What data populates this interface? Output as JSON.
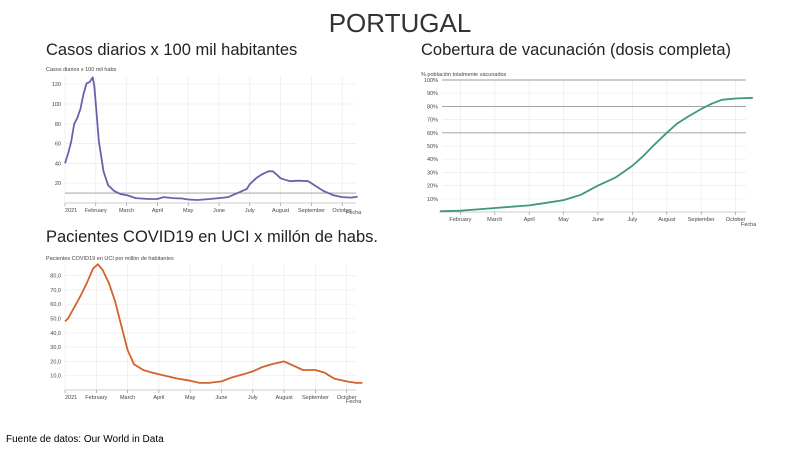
{
  "title": "PORTUGAL",
  "source": "Fuente de datos: Our World in Data",
  "chart_data": [
    {
      "type": "line",
      "title": "Casos diarios x 100 mil habitantes",
      "ylabel": "Casos diarios x 100 mil habs",
      "xlabel": "Fecha",
      "color": "#6a62a8",
      "xticks": [
        "2021",
        "February",
        "March",
        "April",
        "May",
        "June",
        "July",
        "August",
        "September",
        "October"
      ],
      "yticks": [
        "20",
        "40",
        "60",
        "80",
        "100",
        "120"
      ],
      "ylim": [
        0,
        125
      ],
      "reference_lines": [
        10
      ],
      "x_unit": "months since 2021-01-01",
      "points": [
        [
          0,
          40
        ],
        [
          0.1,
          50
        ],
        [
          0.2,
          62
        ],
        [
          0.3,
          80
        ],
        [
          0.4,
          86
        ],
        [
          0.5,
          95
        ],
        [
          0.6,
          110
        ],
        [
          0.7,
          121
        ],
        [
          0.8,
          122
        ],
        [
          0.9,
          127
        ],
        [
          0.95,
          118
        ],
        [
          1.0,
          100
        ],
        [
          1.1,
          62
        ],
        [
          1.25,
          32
        ],
        [
          1.4,
          18
        ],
        [
          1.6,
          12
        ],
        [
          1.8,
          9
        ],
        [
          2.0,
          8
        ],
        [
          2.3,
          5
        ],
        [
          2.7,
          4
        ],
        [
          3.0,
          4
        ],
        [
          3.2,
          6
        ],
        [
          3.5,
          5
        ],
        [
          3.8,
          4.5
        ],
        [
          4.0,
          3.5
        ],
        [
          4.3,
          3
        ],
        [
          4.7,
          4
        ],
        [
          5.0,
          5
        ],
        [
          5.3,
          6
        ],
        [
          5.6,
          10
        ],
        [
          5.9,
          14
        ],
        [
          6.0,
          19
        ],
        [
          6.2,
          25
        ],
        [
          6.4,
          29
        ],
        [
          6.6,
          32
        ],
        [
          6.75,
          32
        ],
        [
          6.9,
          28
        ],
        [
          7.0,
          25
        ],
        [
          7.3,
          22
        ],
        [
          7.6,
          22.5
        ],
        [
          7.9,
          22
        ],
        [
          8.1,
          18
        ],
        [
          8.4,
          12
        ],
        [
          8.7,
          8
        ],
        [
          9.0,
          6
        ],
        [
          9.3,
          5.5
        ],
        [
          9.5,
          6.5
        ]
      ]
    },
    {
      "type": "line",
      "title": "Cobertura de vacunación (dosis completa)",
      "ylabel": "% población totalmente vacunados",
      "xlabel": "Fecha",
      "color": "#3e9a72",
      "xticks": [
        "",
        "February",
        "March",
        "April",
        "May",
        "June",
        "July",
        "August",
        "September",
        "October"
      ],
      "yticks": [
        "10%",
        "20%",
        "30%",
        "40%",
        "50%",
        "60%",
        "70%",
        "80%",
        "90%",
        "100%"
      ],
      "ylim": [
        0,
        100
      ],
      "reference_lines": [
        60,
        80,
        100
      ],
      "x_unit": "months since 2021-01-01",
      "points": [
        [
          0.4,
          0.5
        ],
        [
          1,
          1
        ],
        [
          1.5,
          2
        ],
        [
          2,
          3
        ],
        [
          2.5,
          4
        ],
        [
          3,
          5
        ],
        [
          3.5,
          7
        ],
        [
          4,
          9
        ],
        [
          4.5,
          13
        ],
        [
          5,
          20
        ],
        [
          5.5,
          26
        ],
        [
          6,
          35
        ],
        [
          6.3,
          42
        ],
        [
          6.6,
          50
        ],
        [
          7,
          60
        ],
        [
          7.3,
          67
        ],
        [
          7.6,
          72
        ],
        [
          8,
          78
        ],
        [
          8.3,
          82
        ],
        [
          8.6,
          85
        ],
        [
          9,
          86
        ],
        [
          9.5,
          86.5
        ]
      ]
    },
    {
      "type": "line",
      "title": "Pacientes COVID19 en UCI x millón de habs.",
      "ylabel": "Pacientes COVID19 en UCI por millón de habitantes",
      "xlabel": "Fecha",
      "color": "#d2632a",
      "xticks": [
        "2021",
        "February",
        "March",
        "April",
        "May",
        "June",
        "July",
        "August",
        "September",
        "October"
      ],
      "yticks": [
        "10,0",
        "20,0",
        "30,0",
        "40,0",
        "50,0",
        "60,0",
        "70,0",
        "80,0"
      ],
      "ylim": [
        0,
        90
      ],
      "reference_lines": [],
      "x_unit": "months since 2021-01-01",
      "points": [
        [
          0,
          48
        ],
        [
          0.1,
          50
        ],
        [
          0.3,
          58
        ],
        [
          0.5,
          66
        ],
        [
          0.7,
          75
        ],
        [
          0.9,
          85
        ],
        [
          1.05,
          88
        ],
        [
          1.2,
          84
        ],
        [
          1.4,
          75
        ],
        [
          1.6,
          62
        ],
        [
          1.8,
          45
        ],
        [
          2.0,
          28
        ],
        [
          2.2,
          18
        ],
        [
          2.5,
          14
        ],
        [
          2.8,
          12
        ],
        [
          3.2,
          10
        ],
        [
          3.6,
          8
        ],
        [
          4.0,
          6.5
        ],
        [
          4.3,
          5
        ],
        [
          4.6,
          5
        ],
        [
          5.0,
          6
        ],
        [
          5.3,
          8.5
        ],
        [
          5.7,
          11
        ],
        [
          6.0,
          13
        ],
        [
          6.3,
          16
        ],
        [
          6.6,
          18
        ],
        [
          7.0,
          20
        ],
        [
          7.3,
          17
        ],
        [
          7.6,
          14
        ],
        [
          8.0,
          14
        ],
        [
          8.3,
          12
        ],
        [
          8.6,
          8
        ],
        [
          9.0,
          6
        ],
        [
          9.3,
          5
        ],
        [
          9.5,
          5
        ]
      ]
    }
  ]
}
